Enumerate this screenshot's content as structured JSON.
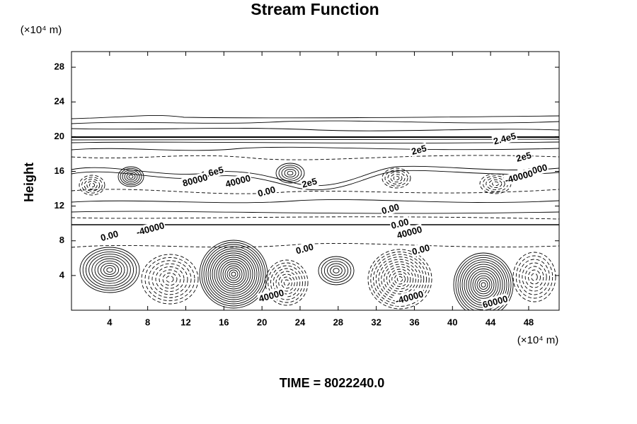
{
  "chart_data": {
    "type": "contour",
    "title": "Stream Function",
    "ylabel": "Height",
    "y_unit": "(×10⁴ m)",
    "x_unit": "(×10⁴ m)",
    "footer": "TIME = 8022240.0",
    "xlim": [
      0,
      51.2
    ],
    "ylim": [
      0,
      29.8
    ],
    "xticks": [
      4,
      8,
      12,
      16,
      20,
      24,
      28,
      32,
      36,
      40,
      44,
      48
    ],
    "yticks": [
      4,
      8,
      12,
      16,
      20,
      24,
      28
    ],
    "color": "#000000",
    "annotations": [
      {
        "text": "2.4e5",
        "x": 45.5,
        "y": 19.7
      },
      {
        "text": "2e5",
        "x": 36.5,
        "y": 18.4
      },
      {
        "text": "2e5",
        "x": 47.5,
        "y": 17.6
      },
      {
        "text": "-80000",
        "x": 48.5,
        "y": 16.0
      },
      {
        "text": "-40000",
        "x": 47.0,
        "y": 15.3
      },
      {
        "text": "1.6e5",
        "x": 14.8,
        "y": 15.8
      },
      {
        "text": "80000",
        "x": 13.0,
        "y": 14.9
      },
      {
        "text": "40000",
        "x": 17.5,
        "y": 14.8
      },
      {
        "text": "0.00",
        "x": 20.5,
        "y": 13.6
      },
      {
        "text": "2e5",
        "x": 25.0,
        "y": 14.6
      },
      {
        "text": "0.00",
        "x": 33.5,
        "y": 11.6
      },
      {
        "text": "0.00",
        "x": 34.5,
        "y": 9.9
      },
      {
        "text": "40000",
        "x": 35.5,
        "y": 8.9
      },
      {
        "text": "0.00",
        "x": 36.7,
        "y": 6.9
      },
      {
        "text": "0.00",
        "x": 24.5,
        "y": 7.0
      },
      {
        "text": "0.00",
        "x": 4.0,
        "y": 8.5
      },
      {
        "text": "-40000",
        "x": 8.3,
        "y": 9.3
      },
      {
        "text": "40000",
        "x": 21.0,
        "y": 1.6
      },
      {
        "text": "-40000",
        "x": 35.5,
        "y": 1.4
      },
      {
        "text": "60000",
        "x": 44.5,
        "y": 0.9
      }
    ]
  }
}
